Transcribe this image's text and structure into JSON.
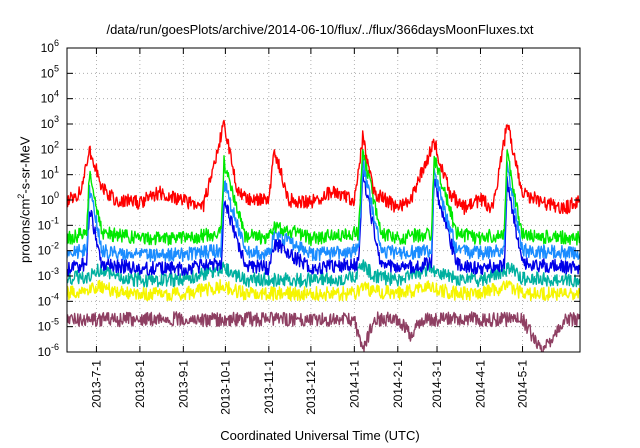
{
  "chart_data": {
    "type": "line",
    "title": "/data/run/goesPlots/archive/2014-06-10/flux/../flux/366daysMoonFluxes.txt",
    "xlabel": "Coordinated Universal Time (UTC)",
    "ylabel": {
      "prefix": "protons/cm",
      "sup": "2",
      "suffix": "-s-sr-MeV"
    },
    "y_scale": "log",
    "ylim": [
      1e-06,
      1000000.0
    ],
    "xlim": [
      "2013-06-10",
      "2014-06-11"
    ],
    "grid": true,
    "x_ticks": [
      {
        "label": "2013-7-1",
        "date": "2013-07-01"
      },
      {
        "label": "2013-8-1",
        "date": "2013-08-01"
      },
      {
        "label": "2013-9-1",
        "date": "2013-09-01"
      },
      {
        "label": "2013-10-1",
        "date": "2013-10-01"
      },
      {
        "label": "2013-11-1",
        "date": "2013-11-01"
      },
      {
        "label": "2013-12-1",
        "date": "2013-12-01"
      },
      {
        "label": "2014-1-1",
        "date": "2014-01-01"
      },
      {
        "label": "2014-2-1",
        "date": "2014-02-01"
      },
      {
        "label": "2014-3-1",
        "date": "2014-03-01"
      },
      {
        "label": "2014-4-1",
        "date": "2014-04-01"
      },
      {
        "label": "2014-5-1",
        "date": "2014-05-01"
      }
    ],
    "y_ticks": [
      {
        "base": "10",
        "exp": "-6",
        "value": 1e-06
      },
      {
        "base": "10",
        "exp": "-5",
        "value": 1e-05
      },
      {
        "base": "10",
        "exp": "-4",
        "value": 0.0001
      },
      {
        "base": "10",
        "exp": "-3",
        "value": 0.001
      },
      {
        "base": "10",
        "exp": "-2",
        "value": 0.01
      },
      {
        "base": "10",
        "exp": "-1",
        "value": 0.1
      },
      {
        "base": "10",
        "exp": "0",
        "value": 1
      },
      {
        "base": "10",
        "exp": "1",
        "value": 10
      },
      {
        "base": "10",
        "exp": "2",
        "value": 100
      },
      {
        "base": "10",
        "exp": "3",
        "value": 1000
      },
      {
        "base": "10",
        "exp": "4",
        "value": 10000
      },
      {
        "base": "10",
        "exp": "5",
        "value": 100000
      },
      {
        "base": "10",
        "exp": "6",
        "value": 1000000
      }
    ],
    "series": [
      {
        "color": "#8e3f62",
        "x": [
          "2013-06-10",
          "2013-06-20",
          "2013-07-01",
          "2013-07-15",
          "2013-08-01",
          "2013-08-15",
          "2013-09-01",
          "2013-09-15",
          "2013-10-01",
          "2013-10-15",
          "2013-11-01",
          "2013-11-15",
          "2013-12-01",
          "2013-12-15",
          "2014-01-01",
          "2014-01-07",
          "2014-01-15",
          "2014-02-01",
          "2014-02-10",
          "2014-02-20",
          "2014-03-01",
          "2014-03-15",
          "2014-04-01",
          "2014-04-15",
          "2014-05-01",
          "2014-05-15",
          "2014-06-01",
          "2014-06-11"
        ],
        "y": [
          2e-05,
          1.8e-05,
          2e-05,
          1.9e-05,
          2e-05,
          2.1e-05,
          2e-05,
          1.8e-05,
          1.9e-05,
          2e-05,
          2e-05,
          1.9e-05,
          2e-05,
          2e-05,
          1.8e-05,
          1e-06,
          2e-05,
          2e-05,
          5e-06,
          2e-05,
          1.9e-05,
          2e-05,
          2e-05,
          1.9e-05,
          2e-05,
          1e-06,
          2e-05,
          2e-05
        ]
      },
      {
        "color": "#f5f500",
        "x": [
          "2013-06-10",
          "2013-06-25",
          "2013-07-01",
          "2013-07-15",
          "2013-08-01",
          "2013-09-01",
          "2013-09-29",
          "2013-10-15",
          "2013-11-01",
          "2013-12-01",
          "2014-01-01",
          "2014-01-07",
          "2014-01-15",
          "2014-02-01",
          "2014-02-25",
          "2014-03-01",
          "2014-03-15",
          "2014-04-01",
          "2014-04-22",
          "2014-05-01",
          "2014-06-11"
        ],
        "y": [
          0.0002,
          0.0003,
          0.0004,
          0.00025,
          0.0002,
          0.0002,
          0.0004,
          0.0002,
          0.0002,
          0.0002,
          0.0002,
          0.0004,
          0.00025,
          0.0002,
          0.0004,
          0.0003,
          0.0002,
          0.0002,
          0.0004,
          0.0002,
          0.0002
        ]
      },
      {
        "color": "#00b0a0",
        "x": [
          "2013-06-10",
          "2013-06-25",
          "2013-07-01",
          "2013-07-15",
          "2013-08-01",
          "2013-09-01",
          "2013-09-29",
          "2013-10-15",
          "2013-11-01",
          "2013-12-01",
          "2014-01-01",
          "2014-01-07",
          "2014-01-15",
          "2014-02-01",
          "2014-02-25",
          "2014-03-01",
          "2014-03-15",
          "2014-04-01",
          "2014-04-22",
          "2014-05-01",
          "2014-06-11"
        ],
        "y": [
          0.0008,
          0.001,
          0.002,
          0.0008,
          0.0007,
          0.0007,
          0.002,
          0.0007,
          0.0007,
          0.0007,
          0.0008,
          0.003,
          0.001,
          0.0007,
          0.002,
          0.0015,
          0.0008,
          0.0007,
          0.002,
          0.0008,
          0.0007
        ]
      },
      {
        "color": "#0000e8",
        "x": [
          "2013-06-10",
          "2013-06-24",
          "2013-06-26",
          "2013-07-05",
          "2013-08-01",
          "2013-09-01",
          "2013-09-28",
          "2013-09-30",
          "2013-10-15",
          "2013-11-01",
          "2013-11-05",
          "2013-12-01",
          "2014-01-04",
          "2014-01-07",
          "2014-01-20",
          "2014-02-01",
          "2014-02-25",
          "2014-02-27",
          "2014-03-15",
          "2014-04-01",
          "2014-04-18",
          "2014-04-20",
          "2014-05-01",
          "2014-06-11"
        ],
        "y": [
          0.002,
          0.003,
          0.5,
          0.003,
          0.002,
          0.002,
          0.003,
          1.0,
          0.003,
          0.002,
          0.02,
          0.002,
          0.003,
          10.0,
          0.003,
          0.002,
          0.003,
          5.0,
          0.003,
          0.002,
          0.003,
          5.0,
          0.003,
          0.002
        ]
      },
      {
        "color": "#1a8cff",
        "x": [
          "2013-06-10",
          "2013-06-24",
          "2013-06-26",
          "2013-07-05",
          "2013-08-01",
          "2013-09-01",
          "2013-09-28",
          "2013-09-30",
          "2013-10-15",
          "2013-11-01",
          "2013-11-05",
          "2013-12-01",
          "2014-01-04",
          "2014-01-07",
          "2014-01-20",
          "2014-02-01",
          "2014-02-25",
          "2014-02-27",
          "2014-03-15",
          "2014-04-01",
          "2014-04-18",
          "2014-04-20",
          "2014-05-01",
          "2014-06-11"
        ],
        "y": [
          0.008,
          0.01,
          3.0,
          0.01,
          0.007,
          0.007,
          0.01,
          5.0,
          0.01,
          0.007,
          0.05,
          0.007,
          0.01,
          30.0,
          0.01,
          0.008,
          0.01,
          10.0,
          0.01,
          0.008,
          0.01,
          20.0,
          0.01,
          0.008
        ]
      },
      {
        "color": "#00e800",
        "x": [
          "2013-06-10",
          "2013-06-24",
          "2013-06-26",
          "2013-07-05",
          "2013-08-01",
          "2013-09-01",
          "2013-09-28",
          "2013-09-30",
          "2013-10-15",
          "2013-11-01",
          "2013-11-05",
          "2013-12-01",
          "2014-01-04",
          "2014-01-07",
          "2014-01-20",
          "2014-02-01",
          "2014-02-25",
          "2014-02-27",
          "2014-03-15",
          "2014-04-01",
          "2014-04-18",
          "2014-04-20",
          "2014-05-01",
          "2014-06-11"
        ],
        "y": [
          0.03,
          0.05,
          10.0,
          0.05,
          0.03,
          0.03,
          0.05,
          30.0,
          0.04,
          0.03,
          0.1,
          0.03,
          0.05,
          100.0,
          0.05,
          0.03,
          0.05,
          50.0,
          0.05,
          0.03,
          0.05,
          60.0,
          0.04,
          0.03
        ]
      },
      {
        "color": "#ff0000",
        "x": [
          "2013-06-10",
          "2013-06-20",
          "2013-06-26",
          "2013-07-05",
          "2013-07-15",
          "2013-08-01",
          "2013-08-15",
          "2013-09-01",
          "2013-09-15",
          "2013-09-30",
          "2013-10-10",
          "2013-10-20",
          "2013-11-01",
          "2013-11-05",
          "2013-11-15",
          "2013-12-01",
          "2013-12-15",
          "2014-01-01",
          "2014-01-07",
          "2014-01-15",
          "2014-02-01",
          "2014-02-10",
          "2014-02-27",
          "2014-03-10",
          "2014-03-20",
          "2014-04-01",
          "2014-04-10",
          "2014-04-20",
          "2014-05-01",
          "2014-05-15",
          "2014-06-01",
          "2014-06-11"
        ],
        "y": [
          1.0,
          2.0,
          100.0,
          3.0,
          1.0,
          0.8,
          2.0,
          1.0,
          0.5,
          1000.0,
          2.0,
          1.0,
          1.0,
          100.0,
          1.0,
          0.8,
          2.0,
          1.0,
          300.0,
          2.0,
          0.5,
          1.0,
          200.0,
          2.0,
          0.5,
          1.0,
          0.5,
          1000.0,
          2.0,
          0.8,
          0.5,
          1.0
        ]
      }
    ]
  }
}
